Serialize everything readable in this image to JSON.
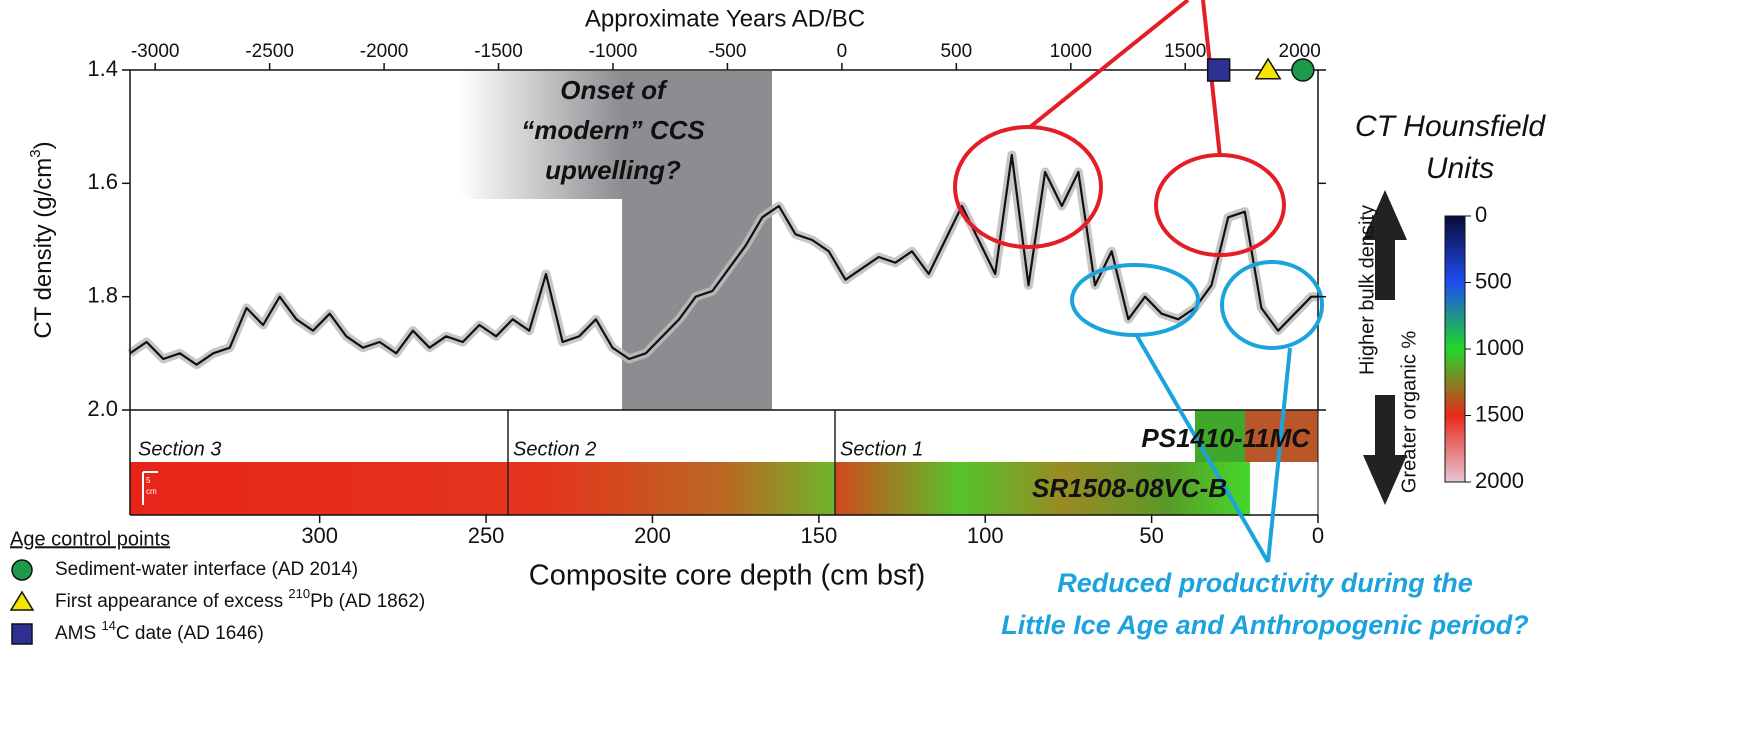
{
  "chart_data": {
    "type": "line",
    "top_axis_label": "Approximate Years AD/BC",
    "x_label": "Composite core depth (cm bsf)",
    "y_label": "CT density (g/cm",
    "y_label_sup": "3",
    "y_label_end": ")",
    "xlim": [
      357,
      0
    ],
    "xticks": [
      300,
      250,
      200,
      150,
      100,
      50,
      0
    ],
    "top_xlim": [
      -3110,
      2080
    ],
    "top_xticks": [
      -3000,
      -2500,
      -2000,
      -1500,
      -1000,
      -500,
      0,
      500,
      1000,
      1500,
      2000
    ],
    "ylim": [
      2.0,
      1.4
    ],
    "yticks": [
      1.4,
      1.6,
      1.8,
      {
        "value": 2,
        "label": "2.0"
      }
    ],
    "series": [
      {
        "color": "#111111",
        "envelope_color": "#bdbdbd",
        "x": [
          357,
          352,
          347,
          342,
          337,
          332,
          327,
          322,
          317,
          312,
          307,
          302,
          297,
          292,
          287,
          282,
          277,
          272,
          267,
          262,
          257,
          252,
          247,
          242,
          237,
          232,
          227,
          222,
          217,
          212,
          207,
          202,
          197,
          192,
          187,
          182,
          177,
          172,
          167,
          162,
          157,
          152,
          147,
          142,
          137,
          132,
          127,
          122,
          117,
          112,
          107,
          102,
          97,
          92,
          87,
          82,
          77,
          72,
          67,
          62,
          57,
          52,
          47,
          42,
          37,
          32,
          27,
          22,
          17,
          12,
          7,
          2,
          0
        ],
        "values": [
          1.9,
          1.88,
          1.91,
          1.9,
          1.92,
          1.9,
          1.89,
          1.82,
          1.85,
          1.8,
          1.84,
          1.86,
          1.83,
          1.87,
          1.89,
          1.88,
          1.9,
          1.86,
          1.89,
          1.87,
          1.88,
          1.85,
          1.87,
          1.84,
          1.86,
          1.76,
          1.88,
          1.87,
          1.84,
          1.89,
          1.91,
          1.9,
          1.87,
          1.84,
          1.8,
          1.79,
          1.75,
          1.71,
          1.66,
          1.64,
          1.69,
          1.7,
          1.72,
          1.77,
          1.75,
          1.73,
          1.74,
          1.72,
          1.76,
          1.7,
          1.64,
          1.7,
          1.76,
          1.55,
          1.78,
          1.58,
          1.64,
          1.58,
          1.78,
          1.72,
          1.84,
          1.8,
          1.83,
          1.84,
          1.82,
          1.78,
          1.66,
          1.65,
          1.82,
          1.86,
          1.83,
          1.8,
          1.8
        ]
      }
    ],
    "age_control": {
      "title": "Age control points",
      "points": [
        {
          "year": 2014,
          "shape": "circle",
          "color": "#1a9a4a",
          "label": "Sediment-water interface (AD 2014)"
        },
        {
          "year": 1862,
          "shape": "triangle",
          "color": "#f5e400",
          "label": "First appearance of excess ",
          "superscript": "210",
          "suffix": "Pb (AD 1862)"
        },
        {
          "year": 1646,
          "shape": "square",
          "color": "#2e3192",
          "label": "AMS ",
          "superscript": "14",
          "suffix": "C date (AD 1646)"
        }
      ]
    },
    "annotations": {
      "onset": [
        "Onset of",
        "“modern” CCS",
        "upwelling?"
      ],
      "sections": [
        "Section 3",
        "Section 2",
        "Section 1"
      ],
      "cores": [
        "PS1410-11MC",
        "SR1508-08VC-B"
      ],
      "reduced": [
        "Reduced productivity during the",
        "Little Ice Age and Anthropogenic period?"
      ],
      "arrows": [
        "Higher bulk density",
        "Greater organic %"
      ],
      "scale_bar": {
        "value": 5,
        "unit": "cm"
      }
    },
    "colorbar": {
      "title": [
        "CT Hounsfield",
        "Units"
      ],
      "lim": [
        0,
        2000
      ],
      "ticks": [
        0,
        500,
        1000,
        1500,
        2000
      ]
    }
  }
}
